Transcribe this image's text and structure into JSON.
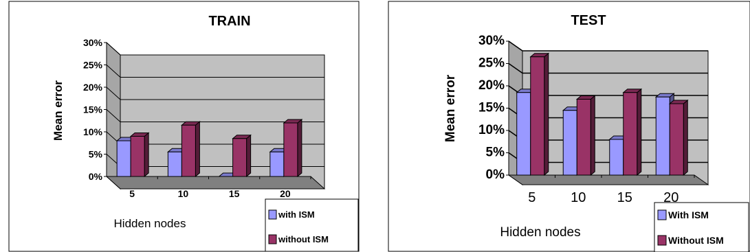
{
  "chart_data": [
    {
      "type": "bar",
      "title": "TRAIN",
      "xlabel": "Hidden nodes",
      "ylabel": "Mean error",
      "categories": [
        "5",
        "10",
        "15",
        "20"
      ],
      "y_ticks": [
        "0%",
        "5%",
        "10%",
        "15%",
        "20%",
        "25%",
        "30%"
      ],
      "ylim": [
        0,
        30
      ],
      "series": [
        {
          "name": "with ISM",
          "values": [
            8,
            5.5,
            0,
            5.5
          ],
          "color": "#9999ff"
        },
        {
          "name": "without ISM",
          "values": [
            9,
            11.5,
            8.5,
            12
          ],
          "color": "#993366"
        }
      ],
      "grid": true,
      "legend_position": "bottom-right"
    },
    {
      "type": "bar",
      "title": "TEST",
      "xlabel": "Hidden nodes",
      "ylabel": "Mean error",
      "categories": [
        "5",
        "10",
        "15",
        "20"
      ],
      "y_ticks": [
        "0%",
        "5%",
        "10%",
        "15%",
        "20%",
        "25%",
        "30%"
      ],
      "ylim": [
        0,
        30
      ],
      "series": [
        {
          "name": "With ISM",
          "values": [
            18.5,
            14.5,
            8,
            17.5
          ],
          "color": "#9999ff"
        },
        {
          "name": "Without ISM",
          "values": [
            26.5,
            17,
            18.5,
            16
          ],
          "color": "#993366"
        }
      ],
      "grid": true,
      "legend_position": "bottom-right"
    }
  ]
}
